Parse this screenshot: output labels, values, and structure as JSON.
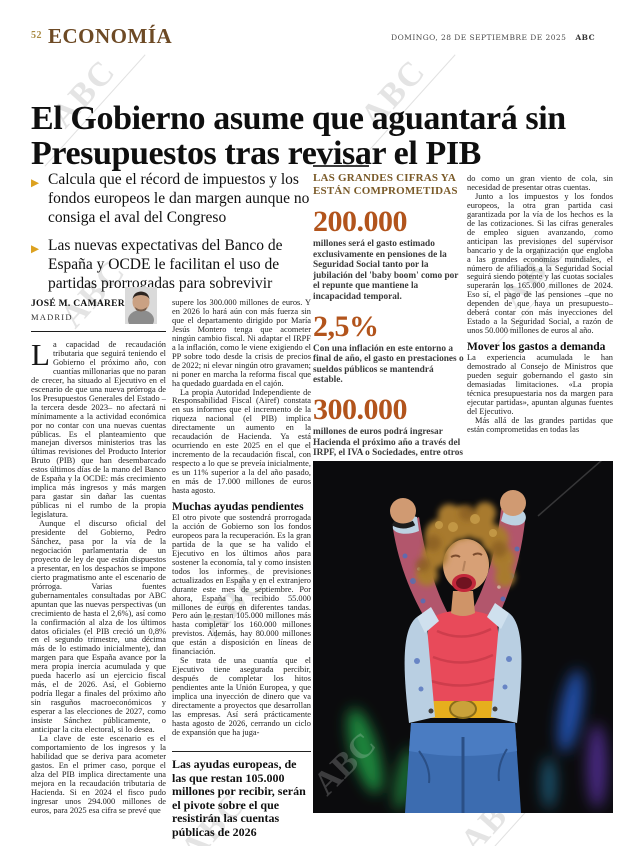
{
  "page": {
    "number": "52",
    "section": "ECONOMÍA",
    "date": "DOMINGO, 28 DE SEPTIEMBRE DE 2025",
    "brand": "ABC",
    "watermark": "ABC"
  },
  "headline": "El Gobierno asume que aguantará sin Presupuestos tras revisar el PIB",
  "bullets": [
    "Calcula que el récord de impuestos y los fondos europeos le dan margen aunque no consiga el aval del Congreso",
    "Las nuevas expectativas del Banco de España y OCDE le facilitan el uso de partidas prorrogadas para sobrevivir"
  ],
  "byline": {
    "author": "JOSÉ M. CAMARERO",
    "place": "MADRID"
  },
  "article": {
    "col1": {
      "drop_cap": "L",
      "lead": "a capacidad de recaudación tributaria que seguirá teniendo el Gobierno el próximo año, con cuantías millonarias que no paran de crecer, ha situado al Ejecutivo en el escenario de que una nueva prórroga de los Presupuestos Generales del Estado –la tercera desde 2023– no afectará ni mínimamente a la actividad económica por no contar con una nuevas cuentas públicas. Es el planteamiento que manejan diversos ministerios tras las últimas revisiones del Producto Interior Bruto (PIB) que han desembarcado estos últimos días de la mano del Banco de España y la OCDE: más crecimiento implica más ingresos y más margen para gastar sin dañar las cuentas públicas ni el rumbo de la propia legislatura.",
      "paragraphs": [
        "Aunque el discurso oficial del presidente del Gobierno, Pedro Sánchez, pasa por la vía de la negociación parlamentaria de un proyecto de ley de que están dispuestos a presentar, en los despachos se impone cierto pragmatismo ante el escenario de prórroga. Varias fuentes gubernamentales consultadas por ABC apuntan que las nuevas perspectivas (un crecimiento de hasta el 2,6%), así como la confirmación al alza de los últimos datos oficiales (el PIB creció un 0,8% en el segundo trimestre, una décima más de lo estimado inicialmente), dan margen para que España avance por la mera propia inercia acumulada y que pueda hacerlo así un ejercicio fiscal más, el de 2026. Así, el Gobierno podría llegar a finales del próximo año sin rasguños macroeconómicos y esperar a las elecciones de 2027, como insiste Sánchez públicamente, o anticipar la cita electoral, si lo desea.",
        "La clave de este escenario es el comportamiento de los ingresos y la habilidad que se deriva para acometer gastos. En el primer caso, porque el alza del PIB implica directamente una mejora en la recaudación tributaria de Hacienda. Si en 2024 el fisco pudo ingresar unos 294.000 millones de euros, para 2025 esa cifra se prevé que"
      ]
    },
    "col2": {
      "blocks": [
        {
          "t": "p",
          "x": "supere los 300.000 millones de euros. Y en 2026 lo hará aún con más fuerza sin que el departamento dirigido por María Jesús Montero tenga que acometer ningún cambio fiscal. Ni adaptar el IRPF a la inflación, como le viene exigiendo el PP sobre todo desde la crisis de precios de 2022; ni elevar ningún otro gravamen; ni poner en marcha la reforma fiscal que ha quedado guardada en el cajón."
        },
        {
          "t": "p",
          "x": "La propia Autoridad Independiente de Responsabilidad Fiscal (Airef) constata en sus informes que el incremento de la riqueza nacional (el PIB) implica directamente un aumento en la recaudación de Hacienda. Ya está ocurriendo en este 2025 en el que el incremento de la recaudación fiscal, con respecto a lo que se preveía inicialmente, es un 11% superior a la del año pasado, en más de 17.000 millones de euros hasta agosto."
        },
        {
          "t": "h",
          "x": "Muchas ayudas pendientes"
        },
        {
          "t": "p",
          "x": "El otro pivote que sostendrá prorrogada la acción de Gobierno son los fondos europeos para la recuperación. Es la gran partida de la que se ha valido el Ejecutivo en los últimos años para sostener la economía, tal y como insisten todos los informes de previsiones actualizados en España y en el extranjero durante este mes de septiembre. Por ahora, España ha recibido 55.000 millones de euros en diferentes tandas. Pero aún le restan 105.000 millones más hasta completar los 160.000 millones previstos. Además, hay 80.000 millones que están a disposición en líneas de financiación."
        },
        {
          "t": "p",
          "x": "Se trata de una cuantía que el Ejecutivo tiene asegurada percibir, después de completar los hitos pendientes ante la Unión Europea, y que implica una inyección de dinero que va directamente a proyectos que desarrollan las empresas. Así será prácticamente hasta agosto de 2026, cerrando un ciclo de expansión que ha juga-"
        }
      ]
    },
    "col4": {
      "blocks": [
        {
          "t": "p",
          "x": "do como un gran viento de cola, sin necesidad de presentar otras cuentas."
        },
        {
          "t": "p",
          "x": "Junto a los impuestos y los fondos europeos, la otra gran partida casi garantizada por la vía de los hechos es la de las cotizaciones. Si las cifras generales de empleo siguen avanzando, como anticipan las previsiones del supervisor bancario y de la organización que engloba a las grandes economías mundiales, el número de afiliados a la Seguridad Social seguirá siendo potente y las cuotas sociales superarán los 165.000 millones de 2024. Eso sí, el pago de las pensiones –que no dependen de que haya un presupuesto– deberá contar con más inyecciones del Estado a la Seguridad Social, a razón de unos 50.000 millones de euros al año."
        },
        {
          "t": "h",
          "x": "Mover los gastos a demanda"
        },
        {
          "t": "p",
          "x": "La experiencia acumulada le han demostrado al Consejo de Ministros que pueden seguir gobernando el gasto sin demasiadas limitaciones. «La propia técnica presupuestaria nos da margen para ejecutar partidas», apuntan algunas fuentes del Ejecutivo."
        },
        {
          "t": "p",
          "x": "Más allá de las grandes partidas que están comprometidas en todas las"
        }
      ]
    }
  },
  "figures": {
    "kicker": "LAS GRANDES CIFRAS YA ESTÁN COMPROMETIDAS",
    "items": [
      {
        "value": "200.000",
        "caption": "millones será el gasto estimado exclusivamente en pensiones de la Seguridad Social tanto por la jubilación del 'baby boom' como por el repunte que mantiene la incapacidad temporal."
      },
      {
        "value": "2,5%",
        "caption": "Con una inflación en este entorno a final de año, el gasto en prestaciones o sueldos públicos se mantendrá estable."
      },
      {
        "value": "300.000",
        "caption": "millones de euros podrá ingresar Hacienda el próximo año a través del IRPF, el IVA o Sociedades, entre otros tributos, gracias a la mejora del PIB."
      }
    ]
  },
  "pull_caption": "Las ayudas europeas, de las que restan 105.000 millones por recibir, serán el pivote sobre el que resistirán las cuentas públicas de 2026",
  "colors": {
    "section_brown": "#6d4a25",
    "gold": "#dca11f",
    "kicker_brown": "#7a5a28",
    "figure_rust": "#b2541c"
  }
}
